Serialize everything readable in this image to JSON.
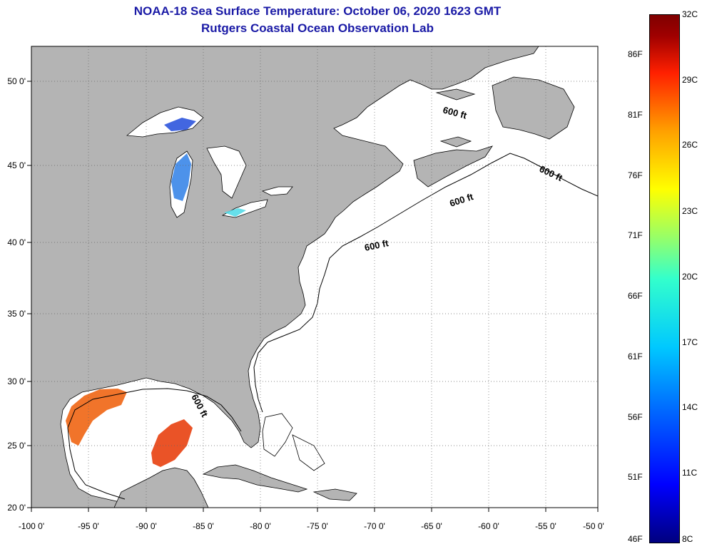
{
  "header": {
    "title": "NOAA-18 Sea Surface Temperature:  October 06, 2020 1623 GMT",
    "subtitle": "Rutgers Coastal Ocean Observation Lab"
  },
  "map": {
    "longitude_labels": [
      "-100 0'",
      "-95 0'",
      "-90 0'",
      "-85 0'",
      "-80 0'",
      "-75 0'",
      "-70 0'",
      "-65 0'",
      "-60 0'",
      "-55 0'",
      "-50 0'"
    ],
    "latitude_labels": [
      "50 0'",
      "45 0'",
      "40 0'",
      "35 0'",
      "30 0'",
      "25 0'",
      "20 0'"
    ],
    "isobath_labels": [
      "600 ft",
      "600 ft",
      "600 ft",
      "600 ft",
      "600 ft"
    ],
    "land_color": "#b4b4b4",
    "ocean_color": "#ffffff"
  },
  "colorbar": {
    "celsius_labels": [
      "32C",
      "29C",
      "26C",
      "23C",
      "20C",
      "17C",
      "14C",
      "11C",
      "8C"
    ],
    "fahrenheit_labels": [
      "86F",
      "81F",
      "76F",
      "71F",
      "66F",
      "61F",
      "56F",
      "51F",
      "46F"
    ]
  }
}
